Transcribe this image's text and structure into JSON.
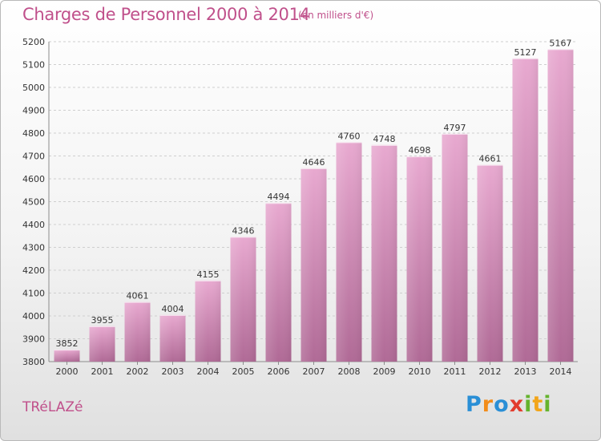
{
  "title": "Charges de Personnel 2000 à 2014",
  "subtitle": "(en milliers d'€)",
  "commune": "TRéLAZé",
  "logo": {
    "letters": [
      "P",
      "r",
      "o",
      "x",
      "i",
      "t",
      "i"
    ],
    "colors": [
      "#2a8fd6",
      "#f28c1a",
      "#2a8fd6",
      "#e23c2d",
      "#65b32e",
      "#f2a51a",
      "#65b32e"
    ]
  },
  "colors": {
    "title": "#c0508b",
    "bar_top": "#e8a9d0",
    "bar_bottom": "#b06a96"
  },
  "chart_data": {
    "type": "bar",
    "title": "Charges de Personnel 2000 à 2014",
    "subtitle": "(en milliers d'€)",
    "categories": [
      "2000",
      "2001",
      "2002",
      "2003",
      "2004",
      "2005",
      "2006",
      "2007",
      "2008",
      "2009",
      "2010",
      "2011",
      "2012",
      "2013",
      "2014"
    ],
    "values": [
      3852,
      3955,
      4061,
      4004,
      4155,
      4346,
      4494,
      4646,
      4760,
      4748,
      4698,
      4797,
      4661,
      5127,
      5167
    ],
    "ylim": [
      3800,
      5200
    ],
    "yticks": [
      3800,
      3900,
      4000,
      4100,
      4200,
      4300,
      4400,
      4500,
      4600,
      4700,
      4800,
      4900,
      5000,
      5100,
      5200
    ],
    "grid": true,
    "xlabel": "",
    "ylabel": ""
  }
}
